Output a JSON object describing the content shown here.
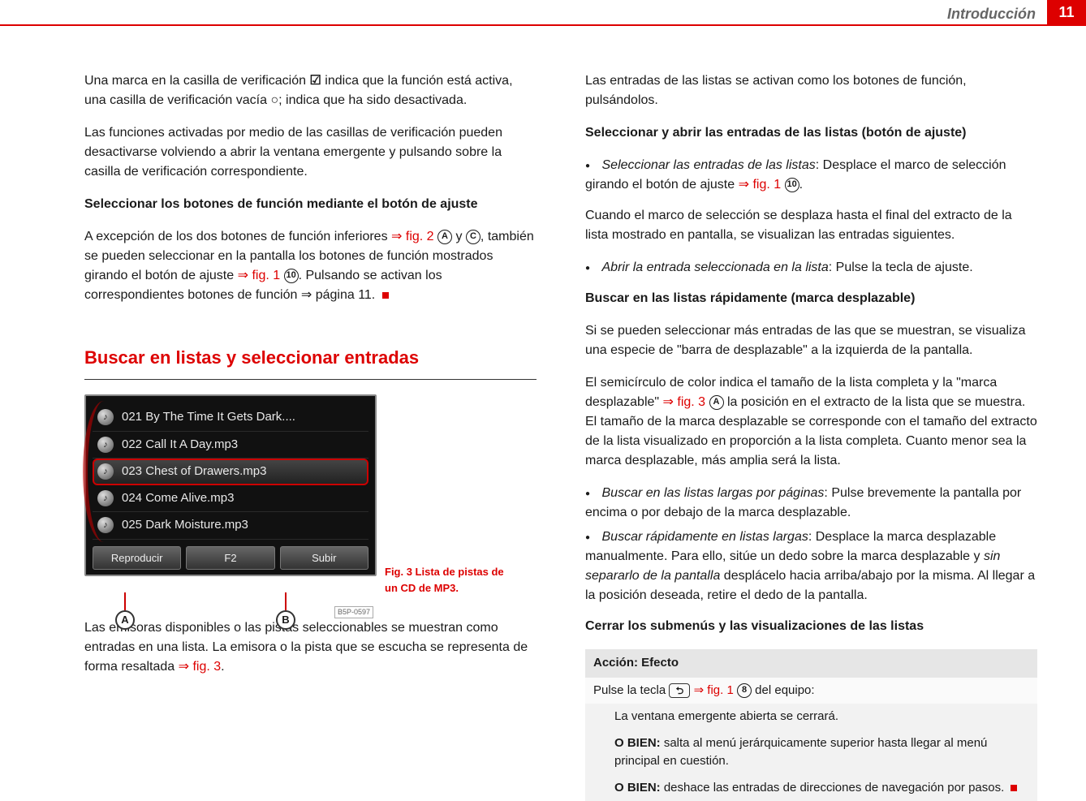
{
  "header": {
    "title": "Introducción",
    "page_number": "11"
  },
  "left": {
    "p1_a": "Una marca en la casilla de verificación ",
    "p1_check": "☑",
    "p1_b": " indica que la función está activa, una casilla de verificación vacía ",
    "p1_empty": "○",
    "p1_c": "; indica que ha sido desactivada.",
    "p2": "Las funciones activadas por medio de las casillas de verificación pueden desactivarse volviendo a abrir la ventana emergente y pulsando sobre la casilla de verificación correspondiente.",
    "h1": "Seleccionar los botones de función mediante el botón de ajuste",
    "p3_a": "A excepción de los dos botones de función inferiores ",
    "p3_ref1": "⇒ fig. 2",
    "p3_labelA": "A",
    "p3_y": " y ",
    "p3_labelC": "C",
    "p3_b": ", también se pueden seleccionar en la pantalla los botones de función mostrados girando el botón de ajuste ",
    "p3_ref2": "⇒ fig. 1",
    "p3_label10": "10",
    "p3_c": ". Pulsando se activan los correspondientes botones de función ⇒ página 11.",
    "section_title": "Buscar en listas y seleccionar entradas",
    "figure": {
      "tracks": [
        "021 By The Time It Gets Dark....",
        "022 Call It A Day.mp3",
        "023 Chest of Drawers.mp3",
        "024 Come Alive.mp3",
        "025 Dark Moisture.mp3"
      ],
      "selected_index": 2,
      "buttons": [
        "Reproducir",
        "F2",
        "Subir"
      ],
      "callout_a": "A",
      "callout_b": "B",
      "code": "B5P-0597",
      "caption": "Fig. 3  Lista de pistas de un CD de MP3."
    },
    "p4_a": "Las emisoras disponibles o las pistas seleccionables se muestran como entradas en una lista. La emisora o la pista que se escucha se representa de forma resaltada ",
    "p4_ref": "⇒ fig. 3",
    "p4_b": "."
  },
  "right": {
    "p1": "Las entradas de las listas se activan como los botones de función, pulsándolos.",
    "h1": "Seleccionar y abrir las entradas de las listas (botón de ajuste)",
    "b1_a_it": "Seleccionar las entradas de las listas",
    "b1_a": ": Desplace el marco de selección girando el botón de ajuste ",
    "b1_ref": "⇒ fig. 1",
    "b1_label": "10",
    "b1_end": ".",
    "p2": "Cuando el marco de selección se desplaza hasta el final del extracto de la lista mostrado en pantalla, se visualizan las entradas siguientes.",
    "b2_it": "Abrir la entrada seleccionada en la lista",
    "b2": ": Pulse la tecla de ajuste.",
    "h2": "Buscar en las listas rápidamente (marca desplazable)",
    "p3": "Si se pueden seleccionar más entradas de las que se muestran, se visualiza una especie de \"barra de desplazable\" a la izquierda de la pantalla.",
    "p4_a": "El semicírculo de color indica el tamaño de la lista completa y la \"marca desplazable\" ",
    "p4_ref": "⇒ fig. 3",
    "p4_label": "A",
    "p4_b": " la posición en el extracto de la lista que se muestra. El tamaño de la marca desplazable se corresponde con el tamaño del extracto de la lista visualizado en proporción a la lista completa. Cuanto menor sea la marca desplazable, más amplia será la lista.",
    "b3_it": "Buscar en las listas largas por páginas",
    "b3": ": Pulse brevemente la pantalla por encima o por debajo de la marca desplazable.",
    "b4_it": "Buscar rápidamente en listas largas",
    "b4_a": ": Desplace la marca desplazable manualmente. Para ello, sitúe un dedo sobre la marca desplazable y ",
    "b4_it2": "sin separarlo de la pantalla",
    "b4_b": " desplácelo hacia arriba/abajo por la misma. Al llegar a la posición deseada, retire el dedo de la pantalla.",
    "h3": "Cerrar los submenús y las visualizaciones de las listas",
    "table": {
      "header": "Acción: Efecto",
      "row1_a": "Pulse la tecla ",
      "row1_key": "⮌",
      "row1_ref": "⇒ fig. 1",
      "row1_label": "8",
      "row1_b": " del equipo:",
      "sub1": "La ventana emergente abierta se cerrará.",
      "sub2_bold": "O BIEN:",
      "sub2": " salta al menú jerárquicamente superior hasta llegar al menú principal en cuestión.",
      "sub3_bold": "O BIEN:",
      "sub3": " deshace las entradas de direcciones de navegación por pasos."
    }
  }
}
